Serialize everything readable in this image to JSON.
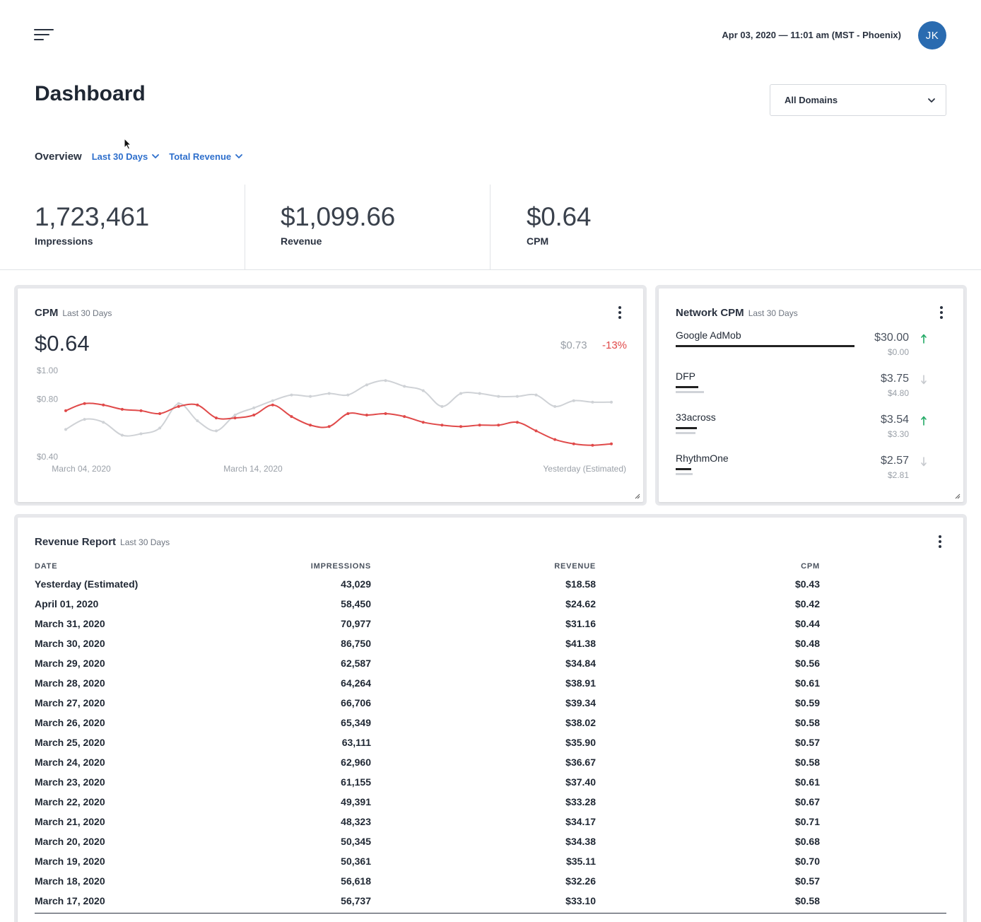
{
  "topbar": {
    "datetime": "Apr 03, 2020 — 11:01 am (MST - Phoenix)",
    "avatar_initials": "JK"
  },
  "page": {
    "title": "Dashboard",
    "domain_select": "All Domains"
  },
  "overview": {
    "label": "Overview",
    "period_filter": "Last 30 Days",
    "metric_filter": "Total Revenue"
  },
  "kpis": [
    {
      "value": "1,723,461",
      "label": "Impressions"
    },
    {
      "value": "$1,099.66",
      "label": "Revenue"
    },
    {
      "value": "$0.64",
      "label": "CPM"
    }
  ],
  "cpm_card": {
    "title": "CPM",
    "subtitle": "Last 30 Days",
    "current": "$0.64",
    "previous": "$0.73",
    "change": "-13%",
    "colors": {
      "current": "#e04a4a",
      "previous": "#cfd2d6"
    }
  },
  "chart_data": {
    "type": "line",
    "y_tick_labels": [
      "$1.00",
      "$0.80",
      "$0.40"
    ],
    "ylim": [
      0.4,
      1.0
    ],
    "x_tick_labels": [
      "March 04, 2020",
      "March 14, 2020",
      "Yesterday (Estimated)"
    ],
    "grid": false,
    "series": [
      {
        "role": "current",
        "values": [
          0.72,
          0.77,
          0.76,
          0.73,
          0.72,
          0.7,
          0.75,
          0.76,
          0.67,
          0.67,
          0.69,
          0.76,
          0.68,
          0.62,
          0.61,
          0.7,
          0.69,
          0.7,
          0.68,
          0.64,
          0.62,
          0.61,
          0.62,
          0.62,
          0.64,
          0.58,
          0.52,
          0.49,
          0.48,
          0.49
        ]
      },
      {
        "role": "previous",
        "values": [
          0.59,
          0.66,
          0.64,
          0.55,
          0.56,
          0.6,
          0.77,
          0.65,
          0.58,
          0.69,
          0.74,
          0.79,
          0.83,
          0.82,
          0.84,
          0.83,
          0.9,
          0.93,
          0.89,
          0.86,
          0.75,
          0.84,
          0.84,
          0.82,
          0.82,
          0.83,
          0.75,
          0.79,
          0.78,
          0.78
        ]
      }
    ]
  },
  "network_card": {
    "title": "Network CPM",
    "subtitle": "Last 30 Days",
    "items": [
      {
        "name": "Google AdMob",
        "value": "$30.00",
        "previous": "$0.00",
        "trend": "up",
        "share": 1.0,
        "prev_share": 0.0
      },
      {
        "name": "DFP",
        "value": "$3.75",
        "previous": "$4.80",
        "trend": "down",
        "share": 0.125,
        "prev_share": 0.16
      },
      {
        "name": "33across",
        "value": "$3.54",
        "previous": "$3.30",
        "trend": "up",
        "share": 0.118,
        "prev_share": 0.11
      },
      {
        "name": "RhythmOne",
        "value": "$2.57",
        "previous": "$2.81",
        "trend": "down",
        "share": 0.086,
        "prev_share": 0.094
      }
    ],
    "colors": {
      "up": "#22aa66",
      "down": "#c6c9ce"
    }
  },
  "revenue_card": {
    "title": "Revenue Report",
    "subtitle": "Last 30 Days",
    "columns": [
      "DATE",
      "IMPRESSIONS",
      "REVENUE",
      "CPM"
    ],
    "rows": [
      [
        "Yesterday (Estimated)",
        "43,029",
        "$18.58",
        "$0.43"
      ],
      [
        "April 01, 2020",
        "58,450",
        "$24.62",
        "$0.42"
      ],
      [
        "March 31, 2020",
        "70,977",
        "$31.16",
        "$0.44"
      ],
      [
        "March 30, 2020",
        "86,750",
        "$41.38",
        "$0.48"
      ],
      [
        "March 29, 2020",
        "62,587",
        "$34.84",
        "$0.56"
      ],
      [
        "March 28, 2020",
        "64,264",
        "$38.91",
        "$0.61"
      ],
      [
        "March 27, 2020",
        "66,706",
        "$39.34",
        "$0.59"
      ],
      [
        "March 26, 2020",
        "65,349",
        "$38.02",
        "$0.58"
      ],
      [
        "March 25, 2020",
        "63,111",
        "$35.90",
        "$0.57"
      ],
      [
        "March 24, 2020",
        "62,960",
        "$36.67",
        "$0.58"
      ],
      [
        "March 23, 2020",
        "61,155",
        "$37.40",
        "$0.61"
      ],
      [
        "March 22, 2020",
        "49,391",
        "$33.28",
        "$0.67"
      ],
      [
        "March 21, 2020",
        "48,323",
        "$34.17",
        "$0.71"
      ],
      [
        "March 20, 2020",
        "50,345",
        "$34.38",
        "$0.68"
      ],
      [
        "March 19, 2020",
        "50,361",
        "$35.11",
        "$0.70"
      ],
      [
        "March 18, 2020",
        "56,618",
        "$32.26",
        "$0.57"
      ],
      [
        "March 17, 2020",
        "56,737",
        "$33.10",
        "$0.58"
      ]
    ]
  }
}
